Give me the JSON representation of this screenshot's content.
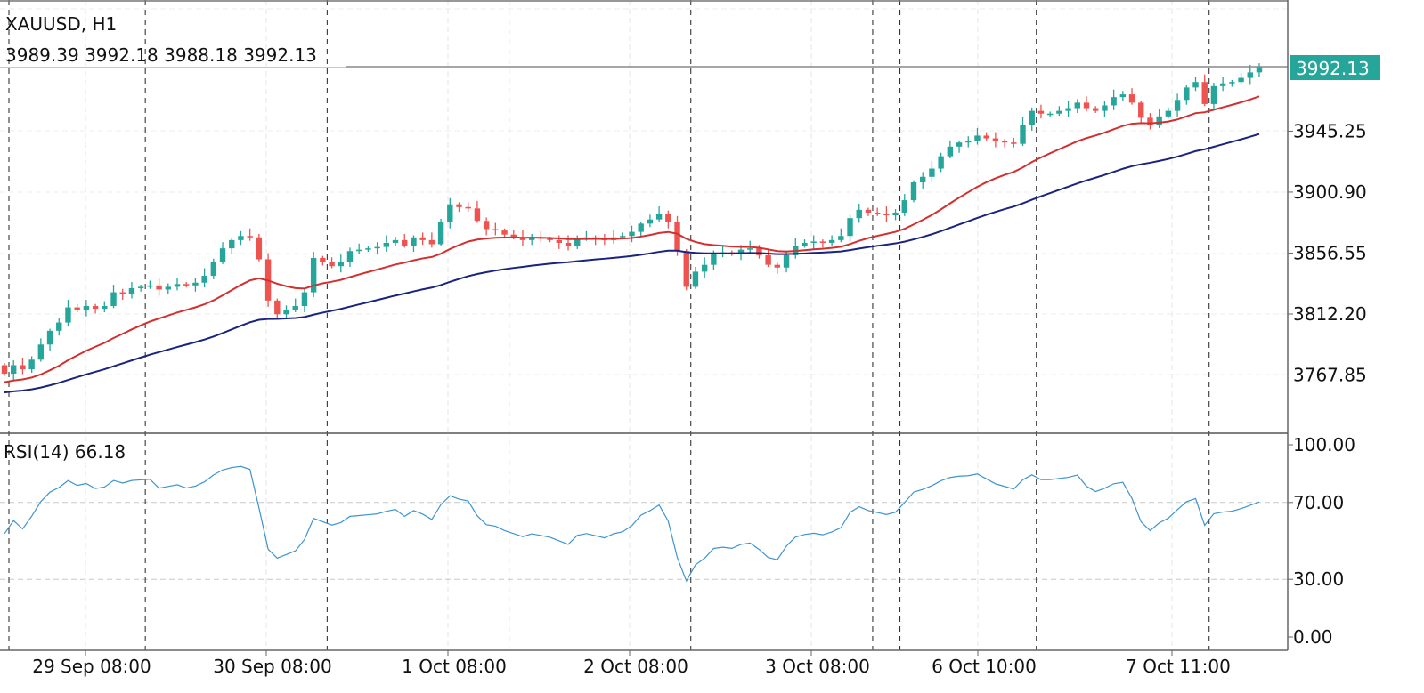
{
  "header": {
    "symbol_timeframe": "XAUUSD, H1",
    "ohlc": "3989.39 3992.18 3988.18 3992.13"
  },
  "current_price_label": "3992.13",
  "rsi_label": "RSI(14) 66.18",
  "colors": {
    "bull": "#26a69a",
    "bear": "#ef5350",
    "ma_fast": "#d32f2f",
    "ma_slow": "#1a237e",
    "rsi": "#3d95d0",
    "price_tag": "#26a69a"
  },
  "chart_data": {
    "type": "candlestick",
    "symbol": "XAUUSD",
    "timeframe": "H1",
    "first_open": 3775,
    "closes": [
      3768.8,
      3775,
      3772,
      3779,
      3790,
      3800,
      3806,
      3817,
      3815,
      3818,
      3816,
      3818,
      3828,
      3827,
      3831,
      3832,
      3833,
      3830,
      3832,
      3834,
      3833,
      3835,
      3840,
      3850,
      3860,
      3866,
      3869,
      3868,
      3852,
      3822,
      3812,
      3815,
      3818,
      3828,
      3853,
      3850,
      3847,
      3850,
      3858,
      3859,
      3860,
      3861,
      3864,
      3866,
      3862,
      3868,
      3866,
      3863,
      3879,
      3892,
      3890,
      3889,
      3880,
      3874,
      3873,
      3870,
      3868,
      3866,
      3868,
      3867,
      3866,
      3864,
      3862,
      3867,
      3868,
      3867,
      3866,
      3868,
      3869,
      3872,
      3878,
      3881,
      3885,
      3879,
      3858,
      3832,
      3843,
      3848,
      3856,
      3857,
      3856,
      3859,
      3860,
      3855,
      3848,
      3846,
      3855,
      3862,
      3864,
      3865,
      3864,
      3866,
      3869,
      3882,
      3888,
      3886,
      3885,
      3884,
      3886,
      3895,
      3908,
      3912,
      3918,
      3927,
      3934,
      3937,
      3938,
      3942,
      3940,
      3938,
      3937,
      3936,
      3950,
      3960,
      3958,
      3958,
      3960,
      3962,
      3966,
      3962,
      3960,
      3964,
      3970,
      3972,
      3966,
      3955,
      3950,
      3956,
      3960,
      3968,
      3977,
      3981,
      3965,
      3978,
      3980,
      3981,
      3984,
      3988,
      3992.13
    ],
    "ma_fast": {
      "period": 20,
      "seed": 3762
    },
    "ma_slow": {
      "period": 50,
      "seed": 3754.6
    },
    "price_axis": {
      "ticks": [
        "3945.25",
        "3900.90",
        "3856.55",
        "3812.20",
        "3767.85"
      ],
      "range": [
        3725.5,
        4040.7
      ]
    },
    "rsi": {
      "period": 14,
      "value": 66.18,
      "ticks": [
        "100.00",
        "70.00",
        "30.00",
        "0.00"
      ],
      "levels": [
        70,
        30
      ],
      "range": [
        0,
        100
      ]
    },
    "x_ticks": [
      "29 Sep 08:00",
      "30 Sep 08:00",
      "1 Oct 08:00",
      "2 Oct 08:00",
      "3 Oct 08:00",
      "6 Oct 10:00",
      "7 Oct 11:00"
    ],
    "session_separators_after_index": [
      0,
      15,
      35,
      55,
      75,
      95,
      98,
      113,
      132
    ]
  }
}
